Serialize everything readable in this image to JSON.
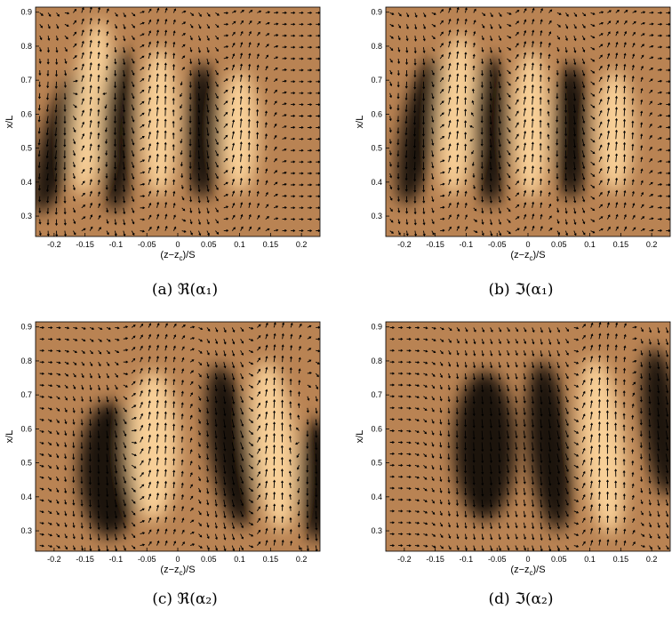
{
  "colors": {
    "base": "#b98353",
    "highlight": "#ffd8a0",
    "dark": "#000000",
    "arrow": "#000000"
  },
  "axes": {
    "x_ticks": [
      "-0.2",
      "-0.15",
      "-0.1",
      "-0.05",
      "0",
      "0.05",
      "0.1",
      "0.15",
      "0.2"
    ],
    "y_ticks": [
      "0.9",
      "0.8",
      "0.7",
      "0.6",
      "0.5",
      "0.4",
      "0.3"
    ],
    "xlabel": "(z−z",
    "xlabel_sub": "c",
    "xlabel_tail": ")/S",
    "ylabel": "x/L"
  },
  "panels": [
    {
      "caption": "(a) ℜ(α₁)",
      "features": [
        {
          "type": "dark",
          "z": -0.19,
          "x": 0.52,
          "rz": 0.03,
          "rx": 0.22,
          "tilt": 0.3
        },
        {
          "type": "bright",
          "z": -0.14,
          "x": 0.62,
          "rz": 0.03,
          "rx": 0.26,
          "tilt": 0.1
        },
        {
          "type": "dark",
          "z": -0.095,
          "x": 0.55,
          "rz": 0.028,
          "rx": 0.24,
          "tilt": 0.05
        },
        {
          "type": "bright",
          "z": -0.03,
          "x": 0.58,
          "rz": 0.03,
          "rx": 0.22,
          "tilt": 0.0
        },
        {
          "type": "dark",
          "z": 0.04,
          "x": 0.55,
          "rz": 0.03,
          "rx": 0.2,
          "tilt": 0.0
        },
        {
          "type": "bright",
          "z": 0.1,
          "x": 0.55,
          "rz": 0.03,
          "rx": 0.18,
          "tilt": 0.0
        }
      ]
    },
    {
      "caption": "(b) ℑ(α₁)",
      "features": [
        {
          "type": "dark",
          "z": -0.175,
          "x": 0.55,
          "rz": 0.03,
          "rx": 0.22,
          "tilt": 0.2
        },
        {
          "type": "bright",
          "z": -0.115,
          "x": 0.6,
          "rz": 0.03,
          "rx": 0.24,
          "tilt": 0.05
        },
        {
          "type": "dark",
          "z": -0.06,
          "x": 0.55,
          "rz": 0.03,
          "rx": 0.22,
          "tilt": 0.0
        },
        {
          "type": "bright",
          "z": 0.005,
          "x": 0.57,
          "rz": 0.03,
          "rx": 0.22,
          "tilt": 0.0
        },
        {
          "type": "dark",
          "z": 0.07,
          "x": 0.55,
          "rz": 0.03,
          "rx": 0.2,
          "tilt": 0.0
        },
        {
          "type": "bright",
          "z": 0.14,
          "x": 0.55,
          "rz": 0.03,
          "rx": 0.18,
          "tilt": 0.0
        }
      ]
    },
    {
      "caption": "(c) ℜ(α₂)",
      "features": [
        {
          "type": "dark",
          "z": -0.11,
          "x": 0.48,
          "rz": 0.05,
          "rx": 0.2,
          "tilt": 0.0
        },
        {
          "type": "bright",
          "z": -0.04,
          "x": 0.55,
          "rz": 0.04,
          "rx": 0.22,
          "tilt": 0.0
        },
        {
          "type": "dark",
          "z": 0.085,
          "x": 0.55,
          "rz": 0.035,
          "rx": 0.24,
          "tilt": -0.15
        },
        {
          "type": "bright",
          "z": 0.155,
          "x": 0.55,
          "rz": 0.035,
          "rx": 0.25,
          "tilt": -0.1
        },
        {
          "type": "dark",
          "z": 0.225,
          "x": 0.45,
          "rz": 0.03,
          "rx": 0.18,
          "tilt": 0.0
        }
      ]
    },
    {
      "caption": "(d) ℑ(α₂)",
      "features": [
        {
          "type": "dark",
          "z": -0.07,
          "x": 0.55,
          "rz": 0.05,
          "rx": 0.22,
          "tilt": 0.0
        },
        {
          "type": "dark",
          "z": 0.035,
          "x": 0.55,
          "rz": 0.035,
          "rx": 0.25,
          "tilt": -0.1
        },
        {
          "type": "bright",
          "z": 0.12,
          "x": 0.55,
          "rz": 0.035,
          "rx": 0.26,
          "tilt": -0.1
        },
        {
          "type": "dark",
          "z": 0.215,
          "x": 0.62,
          "rz": 0.03,
          "rx": 0.22,
          "tilt": -0.1
        }
      ]
    }
  ]
}
